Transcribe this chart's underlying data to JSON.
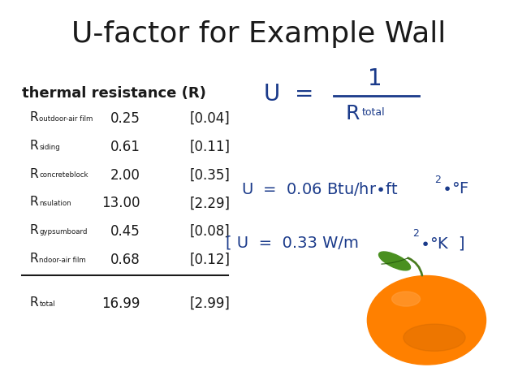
{
  "title": "U-factor for Example Wall",
  "title_fontsize": 26,
  "title_color": "#1a1a1a",
  "background_color": "#ffffff",
  "table_header": "thermal resistance (R)",
  "table_header_fontsize": 13,
  "rows": [
    {
      "label_big": "R",
      "label_small": "outdoor-air film",
      "val_ip": "0.25",
      "val_si": "[0.04]"
    },
    {
      "label_big": "R",
      "label_small": "siding",
      "val_ip": "0.61",
      "val_si": "[0.11]"
    },
    {
      "label_big": "R",
      "label_small": "concreteblock",
      "val_ip": "2.00",
      "val_si": "[0.35]"
    },
    {
      "label_big": "R",
      "label_small": "nsulation",
      "val_ip": "13.00",
      "val_si": "[2.29]"
    },
    {
      "label_big": "R",
      "label_small": "gypsumboard",
      "val_ip": "0.45",
      "val_si": "[0.08]"
    },
    {
      "label_big": "R",
      "label_small": "ndoor-air film",
      "val_ip": "0.68",
      "val_si": "[0.12]"
    }
  ],
  "total_label_big": "R",
  "total_label_small": "total",
  "total_val_ip": "16.99",
  "total_val_si": "[2.99]",
  "formula_color": "#1a3a8a",
  "text_color": "#1a1a1a",
  "line_color": "#1a1a1a"
}
